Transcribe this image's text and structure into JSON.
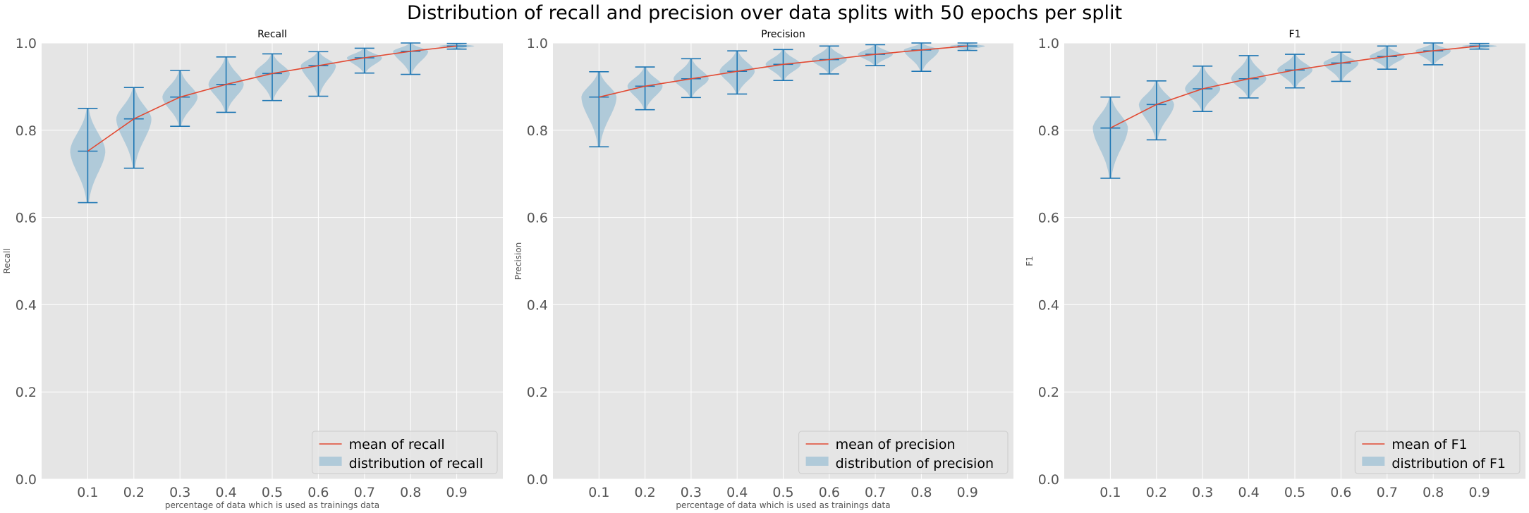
{
  "figure": {
    "suptitle": "Distribution of recall and precision over data splits with 50 epochs per split"
  },
  "colors": {
    "background": "#e5e5e5",
    "grid": "#ffffff",
    "mean_line": "#e24a33",
    "violin_body": "#348abd",
    "violin_lines": "#1f77b4"
  },
  "chart_data": [
    {
      "type": "violin",
      "title": "Recall",
      "xlabel": "percentage of data which is used as trainings data",
      "ylabel": "Recall",
      "x": [
        0.1,
        0.2,
        0.3,
        0.4,
        0.5,
        0.6,
        0.7,
        0.8,
        0.9
      ],
      "xticklabels": [
        "0.1",
        "0.2",
        "0.3",
        "0.4",
        "0.5",
        "0.6",
        "0.7",
        "0.8",
        "0.9"
      ],
      "ylim": [
        0.0,
        1.0
      ],
      "yticks": [
        "0.0",
        "0.2",
        "0.4",
        "0.6",
        "0.8",
        "1.0"
      ],
      "mean": [
        0.752,
        0.826,
        0.876,
        0.905,
        0.93,
        0.948,
        0.966,
        0.981,
        0.993
      ],
      "min": [
        0.634,
        0.713,
        0.809,
        0.841,
        0.868,
        0.878,
        0.931,
        0.928,
        0.986
      ],
      "max": [
        0.85,
        0.898,
        0.937,
        0.968,
        0.975,
        0.98,
        0.988,
        1.0,
        0.999
      ],
      "legend": {
        "position": "lower right",
        "mean_label": "mean of recall",
        "dist_label": "distribution of recall"
      },
      "grid": true
    },
    {
      "type": "violin",
      "title": "Precision",
      "xlabel": "percentage of data which is used as trainings data",
      "ylabel": "Precision",
      "x": [
        0.1,
        0.2,
        0.3,
        0.4,
        0.5,
        0.6,
        0.7,
        0.8,
        0.9
      ],
      "xticklabels": [
        "0.1",
        "0.2",
        "0.3",
        "0.4",
        "0.5",
        "0.6",
        "0.7",
        "0.8",
        "0.9"
      ],
      "ylim": [
        0.0,
        1.0
      ],
      "yticks": [
        "0.0",
        "0.2",
        "0.4",
        "0.6",
        "0.8",
        "1.0"
      ],
      "mean": [
        0.876,
        0.901,
        0.918,
        0.935,
        0.951,
        0.962,
        0.974,
        0.984,
        0.993
      ],
      "min": [
        0.762,
        0.847,
        0.875,
        0.883,
        0.914,
        0.929,
        0.948,
        0.935,
        0.983
      ],
      "max": [
        0.934,
        0.945,
        0.964,
        0.982,
        0.985,
        0.993,
        0.996,
        1.0,
        1.0
      ],
      "legend": {
        "position": "lower right",
        "mean_label": "mean of precision",
        "dist_label": "distribution of precision"
      },
      "grid": true
    },
    {
      "type": "violin",
      "title": "F1",
      "xlabel": "",
      "ylabel": "F1",
      "x": [
        0.1,
        0.2,
        0.3,
        0.4,
        0.5,
        0.6,
        0.7,
        0.8,
        0.9
      ],
      "xticklabels": [
        "0.1",
        "0.2",
        "0.3",
        "0.4",
        "0.5",
        "0.6",
        "0.7",
        "0.8",
        "0.9"
      ],
      "ylim": [
        0.0,
        1.0
      ],
      "yticks": [
        "0.0",
        "0.2",
        "0.4",
        "0.6",
        "0.8",
        "1.0"
      ],
      "mean": [
        0.805,
        0.859,
        0.895,
        0.918,
        0.938,
        0.954,
        0.969,
        0.982,
        0.993
      ],
      "min": [
        0.69,
        0.778,
        0.843,
        0.874,
        0.897,
        0.912,
        0.94,
        0.95,
        0.986
      ],
      "max": [
        0.876,
        0.913,
        0.947,
        0.971,
        0.974,
        0.979,
        0.993,
        1.0,
        0.999
      ],
      "legend": {
        "position": "lower right",
        "mean_label": "mean of F1",
        "dist_label": "distribution of F1"
      },
      "grid": true
    }
  ]
}
